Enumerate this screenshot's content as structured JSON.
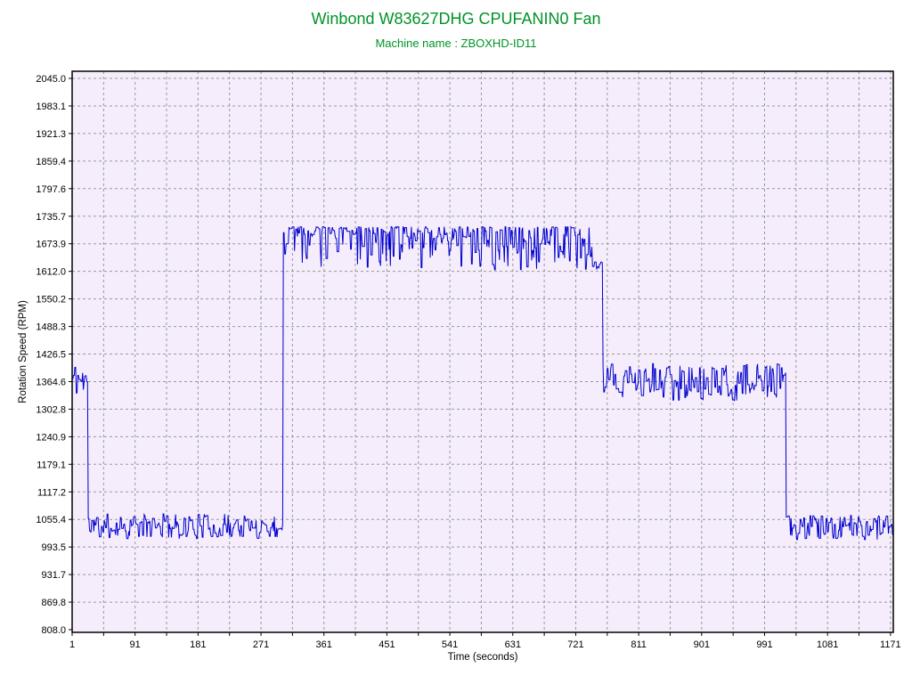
{
  "header": {
    "title": "Winbond W83627DHG CPUFANIN0 Fan",
    "subtitle": "Machine name : ZBOXHD-ID11"
  },
  "colors": {
    "title_green": "#009328",
    "line_blue": "#0000d0",
    "plot_background": "#f5edfb",
    "grid_gray": "#999999",
    "frame_black": "#000000"
  },
  "chart_data": {
    "type": "line",
    "title": "Winbond W83627DHG CPUFANIN0 Fan",
    "subtitle": "Machine name : ZBOXHD-ID11",
    "xlabel": "Time (seconds)",
    "ylabel": "Rotation Speed (RPM)",
    "grid": true,
    "legend_position": "none",
    "xlim": [
      1,
      1175
    ],
    "ylim": [
      802,
      2061
    ],
    "x_ticks": [
      1,
      91,
      181,
      271,
      361,
      451,
      541,
      631,
      721,
      811,
      901,
      991,
      1081,
      1171
    ],
    "x_minor_grid": {
      "start": 46,
      "step": 45,
      "end": 1171
    },
    "y_tick_labels": [
      "808.0",
      "869.8",
      "931.7",
      "993.5",
      "1055.4",
      "1117.2",
      "1179.1",
      "1240.9",
      "1302.8",
      "1364.6",
      "1426.5",
      "1488.3",
      "1550.2",
      "1612.0",
      "1673.9",
      "1735.7",
      "1797.6",
      "1859.4",
      "1921.3",
      "1983.1",
      "2045.0"
    ],
    "series": [
      {
        "name": "CPUFANIN0 rotation speed",
        "color": "#0000d0",
        "sample_step_seconds": 1,
        "noise_seed": 11,
        "segments": [
          {
            "t_start": 1,
            "t_end": 23,
            "rpm_min": 1333,
            "rpm_max": 1408,
            "bias": "none"
          },
          {
            "t_start": 24,
            "t_end": 302,
            "rpm_min": 1012,
            "rpm_max": 1068,
            "bias": "none"
          },
          {
            "t_start": 303,
            "t_end": 744,
            "rpm_min": 1615,
            "rpm_max": 1712,
            "bias": "top"
          },
          {
            "t_start": 745,
            "t_end": 759,
            "rpm_min": 1615,
            "rpm_max": 1634,
            "bias": "none"
          },
          {
            "t_start": 760,
            "t_end": 1021,
            "rpm_min": 1322,
            "rpm_max": 1405,
            "bias": "none"
          },
          {
            "t_start": 1022,
            "t_end": 1175,
            "rpm_min": 1010,
            "rpm_max": 1066,
            "bias": "none"
          }
        ]
      }
    ]
  }
}
